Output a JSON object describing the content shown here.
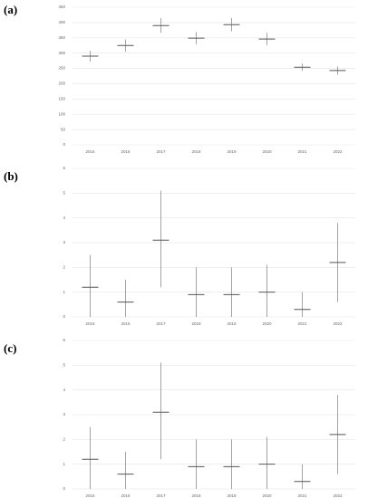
{
  "chart_data": [
    {
      "type": "errorbar",
      "title": "(a)",
      "categories": [
        "2015",
        "2016",
        "2017",
        "2018",
        "2019",
        "2020",
        "2021",
        "2022"
      ],
      "values": [
        290,
        325,
        390,
        349,
        393,
        346,
        254,
        243
      ],
      "low": [
        272,
        305,
        366,
        329,
        371,
        326,
        242,
        229
      ],
      "high": [
        308,
        345,
        414,
        369,
        415,
        366,
        266,
        257
      ],
      "ylim": [
        0,
        450
      ],
      "yticks": [
        0,
        50,
        100,
        150,
        200,
        250,
        300,
        350,
        400,
        450
      ],
      "grid": true,
      "color": "#8c8c8c"
    },
    {
      "type": "errorbar",
      "title": "(b)",
      "categories": [
        "2015",
        "2016",
        "2017",
        "2018",
        "2019",
        "2020",
        "2021",
        "2022"
      ],
      "values": [
        1.2,
        0.6,
        3.1,
        0.9,
        0.9,
        1.0,
        0.3,
        2.2
      ],
      "low": [
        0,
        0,
        1.2,
        0,
        0,
        0,
        0,
        0.6
      ],
      "high": [
        2.5,
        1.5,
        5.1,
        2.0,
        2.0,
        2.1,
        1.0,
        3.8
      ],
      "ylim": [
        0,
        6
      ],
      "yticks": [
        0,
        1,
        2,
        3,
        4,
        5,
        6
      ],
      "grid": true,
      "color": "#8c8c8c"
    },
    {
      "type": "errorbar",
      "title": "(c)",
      "categories": [
        "2015",
        "2016",
        "2017",
        "2018",
        "2019",
        "2020",
        "2021",
        "2022"
      ],
      "values": [
        1.2,
        0.6,
        3.1,
        0.9,
        0.9,
        1.0,
        0.3,
        2.2
      ],
      "low": [
        0,
        0,
        1.2,
        0,
        0,
        0,
        0,
        0.6
      ],
      "high": [
        2.5,
        1.5,
        5.1,
        2.0,
        2.0,
        2.1,
        1.0,
        3.8
      ],
      "ylim": [
        0,
        6
      ],
      "yticks": [
        0,
        1,
        2,
        3,
        4,
        5,
        6
      ],
      "grid": true,
      "color": "#8c8c8c"
    }
  ]
}
